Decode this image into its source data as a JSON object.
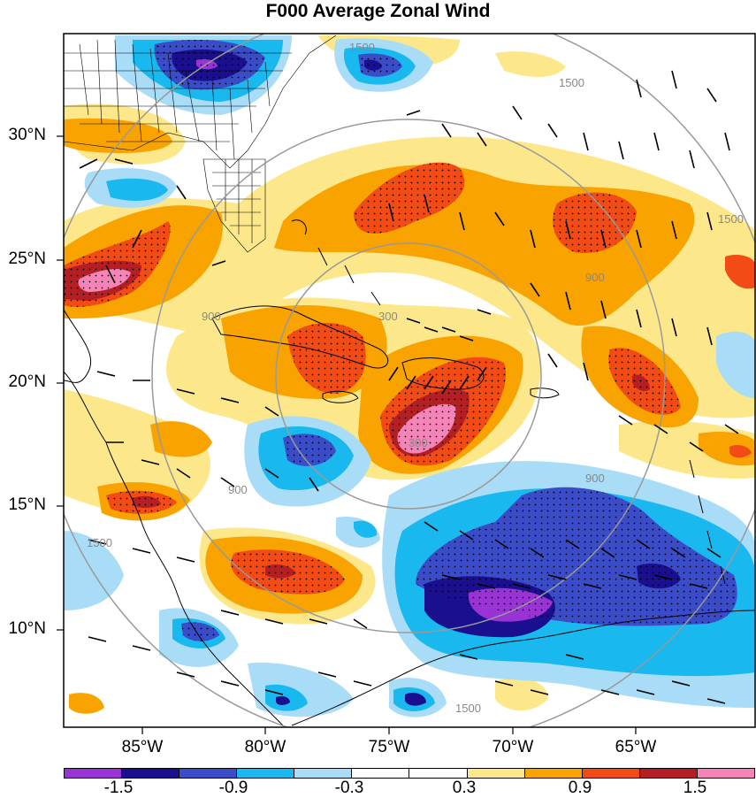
{
  "title": "F000 Average Zonal Wind",
  "colors": {
    "bins": [
      "#9a33d6",
      "#1a0f8f",
      "#3b4cc8",
      "#19b8ef",
      "#a9dcf7",
      "#ffffff",
      "#ffffff",
      "#fce88b",
      "#f8a300",
      "#f24b16",
      "#b41f24",
      "#f684b8"
    ]
  },
  "map": {
    "lat_labels": [
      "30°N",
      "25°N",
      "20°N",
      "15°N",
      "10°N"
    ],
    "lon_labels": [
      "85°W",
      "80°W",
      "75°W",
      "70°W",
      "65°W"
    ],
    "range_ring_labels": [
      "300",
      "300",
      "900",
      "900",
      "900",
      "900",
      "1500",
      "1500",
      "1500",
      "1500",
      "1500"
    ]
  },
  "colorbar": {
    "labels": [
      "-1.5",
      "-0.9",
      "-0.3",
      "0.3",
      "0.9",
      "1.5"
    ],
    "levels": [
      -1.8,
      -1.5,
      -1.2,
      -0.9,
      -0.6,
      -0.3,
      0,
      0.3,
      0.6,
      0.9,
      1.2,
      1.5,
      1.8
    ]
  }
}
